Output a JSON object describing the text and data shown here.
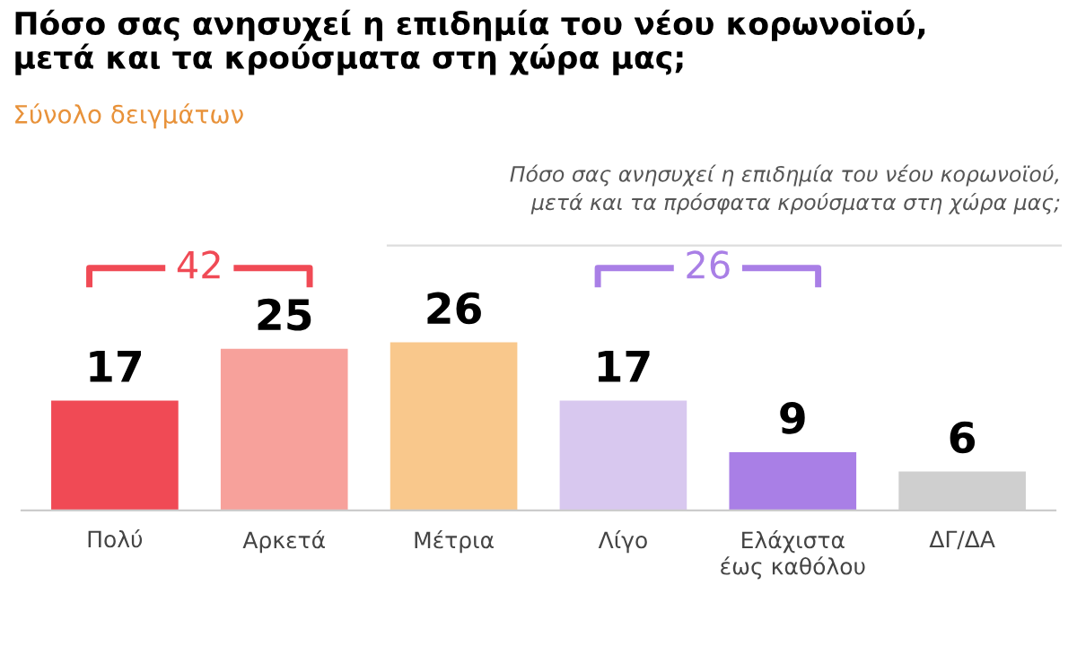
{
  "chart_data": {
    "type": "bar",
    "title": "Πόσο σας ανησυχεί η επιδημία του νέου κορωνοϊού,\nμετά και τα κρούσματα στη χώρα μας;",
    "subtitle": "Σύνολο δειγμάτων",
    "categories": [
      "Πολύ",
      "Αρκετά",
      "Μέτρια",
      "Λίγο",
      "Ελάχιστα\nέως καθόλου",
      "ΔΓ/ΔΑ"
    ],
    "values": [
      17,
      25,
      26,
      17,
      9,
      6
    ],
    "colors": [
      "#f04a55",
      "#f7a19b",
      "#f9c88c",
      "#d8c8ef",
      "#a97fe6",
      "#cfcfcf"
    ],
    "data_labels": true,
    "annotations": [
      "Πόσο σας ανησυχεί η επιδημία του νέου κορωνοϊού,\nμετά και τα πρόσφατα κρούσματα στη χώρα μας;",
      "42",
      "26"
    ]
  }
}
